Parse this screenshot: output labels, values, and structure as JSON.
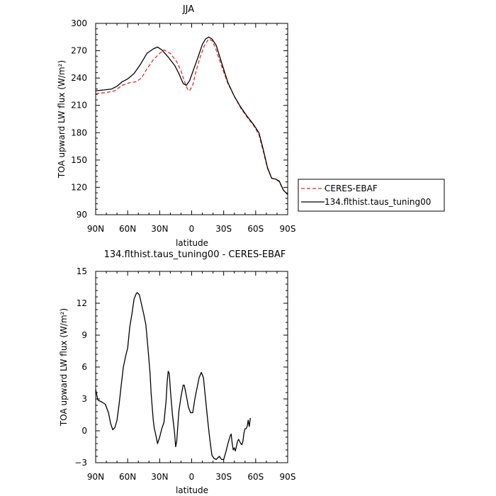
{
  "chart_data": [
    {
      "type": "line",
      "title": "JJA",
      "xlabel": "latitude",
      "ylabel": "TOA upward LW flux (W/m²)",
      "xlim": [
        90,
        -90
      ],
      "ylim": [
        90,
        300
      ],
      "x_ticks": [
        {
          "value": 90,
          "label": "90N"
        },
        {
          "value": 60,
          "label": "60N"
        },
        {
          "value": 30,
          "label": "30N"
        },
        {
          "value": 0,
          "label": "0"
        },
        {
          "value": -30,
          "label": "30S"
        },
        {
          "value": -60,
          "label": "60S"
        },
        {
          "value": -90,
          "label": "90S"
        }
      ],
      "y_ticks": [
        90,
        120,
        150,
        180,
        210,
        240,
        270,
        300
      ],
      "legend_position": "right",
      "series": [
        {
          "name": "CERES-EBAF",
          "color": "#e8281e",
          "style": "dashed",
          "points": [
            [
              90,
              223
            ],
            [
              80,
              224
            ],
            [
              72,
              226
            ],
            [
              65,
              232
            ],
            [
              58,
              235
            ],
            [
              52,
              236
            ],
            [
              47,
              240
            ],
            [
              42,
              250
            ],
            [
              36,
              260
            ],
            [
              30,
              267
            ],
            [
              26,
              271
            ],
            [
              20,
              267
            ],
            [
              14,
              258
            ],
            [
              10,
              248
            ],
            [
              7,
              237
            ],
            [
              4,
              228
            ],
            [
              2,
              226
            ],
            [
              -1,
              232
            ],
            [
              -4,
              247
            ],
            [
              -8,
              263
            ],
            [
              -12,
              276
            ],
            [
              -16,
              283
            ],
            [
              -19,
              281
            ],
            [
              -22,
              274
            ],
            [
              -28,
              253
            ],
            [
              -34,
              234
            ],
            [
              -40,
              220
            ],
            [
              -46,
              207
            ],
            [
              -52,
              197
            ],
            [
              -58,
              188
            ],
            [
              -63,
              178
            ],
            [
              -67,
              160
            ],
            [
              -71,
              141
            ],
            [
              -75,
              130
            ],
            [
              -79,
              129
            ],
            [
              -82,
              126
            ],
            [
              -86,
              117
            ],
            [
              -90,
              112
            ]
          ]
        },
        {
          "name": "134.flthist.taus_tuning00",
          "color": "#000000",
          "style": "solid",
          "points": [
            [
              90,
              226
            ],
            [
              82,
              227
            ],
            [
              75,
              228
            ],
            [
              70,
              231
            ],
            [
              65,
              236
            ],
            [
              60,
              239
            ],
            [
              54,
              245
            ],
            [
              48,
              255
            ],
            [
              42,
              267
            ],
            [
              36,
              272
            ],
            [
              32,
              274
            ],
            [
              28,
              271
            ],
            [
              22,
              263
            ],
            [
              16,
              254
            ],
            [
              12,
              245
            ],
            [
              8,
              234
            ],
            [
              5,
              232
            ],
            [
              2,
              237
            ],
            [
              -2,
              250
            ],
            [
              -6,
              263
            ],
            [
              -10,
              277
            ],
            [
              -13,
              283
            ],
            [
              -16,
              285
            ],
            [
              -19,
              283
            ],
            [
              -23,
              276
            ],
            [
              -28,
              257
            ],
            [
              -34,
              235
            ],
            [
              -40,
              220
            ],
            [
              -46,
              208
            ],
            [
              -52,
              198
            ],
            [
              -58,
              189
            ],
            [
              -63,
              180
            ],
            [
              -67,
              162
            ],
            [
              -71,
              142
            ],
            [
              -75,
              130
            ],
            [
              -79,
              129
            ],
            [
              -82,
              127
            ],
            [
              -86,
              117
            ],
            [
              -90,
              112
            ]
          ]
        }
      ]
    },
    {
      "type": "line",
      "title": "134.flthist.taus_tuning00 - CERES-EBAF",
      "xlabel": "latitude",
      "ylabel": "TOA upward LW flux (W/m²)",
      "xlim": [
        90,
        -90
      ],
      "ylim": [
        -3,
        15
      ],
      "x_ticks": [
        {
          "value": 90,
          "label": "90N"
        },
        {
          "value": 60,
          "label": "60N"
        },
        {
          "value": 30,
          "label": "30N"
        },
        {
          "value": 0,
          "label": "0"
        },
        {
          "value": -30,
          "label": "30S"
        },
        {
          "value": -60,
          "label": "60S"
        },
        {
          "value": -90,
          "label": "90S"
        }
      ],
      "y_ticks": [
        -3,
        0,
        3,
        6,
        9,
        12,
        15
      ],
      "series": [
        {
          "color": "#000000",
          "style": "solid",
          "points": [
            [
              90,
              3.9
            ],
            [
              88,
              2.9
            ],
            [
              84,
              2.7
            ],
            [
              81,
              2.5
            ],
            [
              78,
              1.7
            ],
            [
              76,
              0.7
            ],
            [
              74,
              0.1
            ],
            [
              72,
              0.3
            ],
            [
              70,
              1.0
            ],
            [
              68,
              2.5
            ],
            [
              66,
              4.3
            ],
            [
              64,
              6.0
            ],
            [
              62,
              7.0
            ],
            [
              60,
              7.8
            ],
            [
              58,
              9.8
            ],
            [
              56,
              11.0
            ],
            [
              54,
              12.4
            ],
            [
              52,
              12.9
            ],
            [
              51,
              13.0
            ],
            [
              49,
              12.8
            ],
            [
              47,
              11.9
            ],
            [
              45,
              11.0
            ],
            [
              43,
              10.0
            ],
            [
              41,
              7.8
            ],
            [
              39,
              5.4
            ],
            [
              38,
              3.5
            ],
            [
              36,
              1.0
            ],
            [
              35,
              0.2
            ],
            [
              34,
              -0.2
            ],
            [
              32,
              -1.2
            ],
            [
              30,
              -0.6
            ],
            [
              28,
              0.2
            ],
            [
              26,
              0.8
            ],
            [
              24,
              2.8
            ],
            [
              23,
              4.6
            ],
            [
              22,
              5.6
            ],
            [
              21,
              5.4
            ],
            [
              20,
              3.9
            ],
            [
              18,
              1.5
            ],
            [
              16,
              -0.2
            ],
            [
              15,
              -1.5
            ],
            [
              14,
              -1.0
            ],
            [
              12,
              1.8
            ],
            [
              10,
              3.2
            ],
            [
              8,
              4.3
            ],
            [
              7,
              4.3
            ],
            [
              5,
              3.3
            ],
            [
              3,
              2.2
            ],
            [
              1,
              1.7
            ],
            [
              -1,
              1.7
            ],
            [
              -3,
              3.0
            ],
            [
              -5,
              4.0
            ],
            [
              -7,
              5.0
            ],
            [
              -9,
              5.5
            ],
            [
              -11,
              5.0
            ],
            [
              -13,
              3.0
            ],
            [
              -15,
              1.0
            ],
            [
              -17,
              -0.8
            ],
            [
              -19,
              -2.3
            ],
            [
              -21,
              -2.6
            ],
            [
              -23,
              -2.7
            ],
            [
              -26,
              -2.4
            ],
            [
              -28,
              -2.7
            ],
            [
              -30,
              -2.7
            ],
            [
              -32,
              -2.0
            ],
            [
              -34,
              -1.2
            ],
            [
              -36,
              -0.5
            ],
            [
              -37,
              -0.3
            ],
            [
              -38,
              -1.2
            ],
            [
              -39,
              -1.8
            ],
            [
              -40,
              -1.6
            ],
            [
              -41,
              -1.9
            ],
            [
              -43,
              -1.0
            ],
            [
              -44,
              -0.8
            ],
            [
              -46,
              -1.2
            ],
            [
              -47,
              -1.3
            ],
            [
              -48,
              -1.0
            ],
            [
              -49,
              -0.2
            ],
            [
              -50,
              0.2
            ],
            [
              -51,
              0.2
            ],
            [
              -52,
              0.4
            ],
            [
              -53,
              1.0
            ],
            [
              -54,
              0.4
            ],
            [
              -55,
              1.2
            ]
          ]
        }
      ]
    }
  ]
}
